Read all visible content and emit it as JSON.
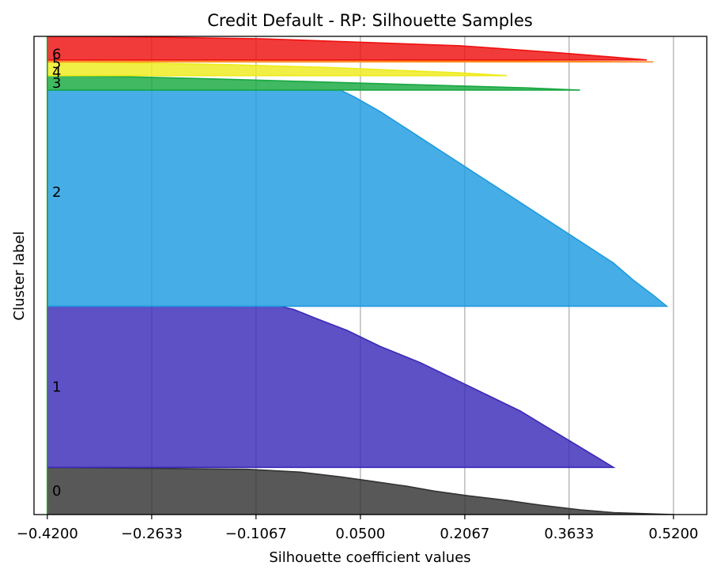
{
  "chart_data": {
    "type": "area",
    "title": "Credit Default - RP: Silhouette Samples",
    "xlabel": "Silhouette coefficient values",
    "ylabel": "Cluster label",
    "xlim": [
      -0.44,
      0.57
    ],
    "xticks": [
      "-0.4200",
      "-0.2633",
      "-0.1067",
      "0.0500",
      "0.2067",
      "0.3633",
      "0.5200"
    ],
    "xtick_values": [
      -0.42,
      -0.2633,
      -0.1067,
      0.05,
      0.2067,
      0.3633,
      0.52
    ],
    "grid": "vertical",
    "average_silhouette_line": -0.42,
    "clusters": [
      {
        "label": "0",
        "color": "#333333",
        "y_range": [
          0,
          72
        ],
        "profile": [
          [
            0,
            0.52
          ],
          [
            0.04,
            0.43
          ],
          [
            0.1,
            0.38
          ],
          [
            0.2,
            0.32
          ],
          [
            0.3,
            0.27
          ],
          [
            0.4,
            0.21
          ],
          [
            0.5,
            0.16
          ],
          [
            0.6,
            0.12
          ],
          [
            0.7,
            0.07
          ],
          [
            0.8,
            0.02
          ],
          [
            0.9,
            -0.04
          ],
          [
            0.96,
            -0.12
          ],
          [
            1,
            -0.42
          ]
        ]
      },
      {
        "label": "1",
        "color": "#3a2ab8",
        "y_range": [
          72,
          318
        ],
        "profile": [
          [
            0,
            0.43
          ],
          [
            0.05,
            0.41
          ],
          [
            0.15,
            0.37
          ],
          [
            0.25,
            0.33
          ],
          [
            0.35,
            0.29
          ],
          [
            0.45,
            0.24
          ],
          [
            0.55,
            0.19
          ],
          [
            0.65,
            0.14
          ],
          [
            0.75,
            0.08
          ],
          [
            0.85,
            0.03
          ],
          [
            0.93,
            -0.02
          ],
          [
            0.98,
            -0.05
          ],
          [
            1,
            -0.07
          ]
        ]
      },
      {
        "label": "2",
        "color": "#1f9be0",
        "y_range": [
          318,
          648
        ],
        "profile": [
          [
            0,
            0.51
          ],
          [
            0.05,
            0.49
          ],
          [
            0.12,
            0.46
          ],
          [
            0.2,
            0.43
          ],
          [
            0.3,
            0.38
          ],
          [
            0.4,
            0.33
          ],
          [
            0.5,
            0.28
          ],
          [
            0.6,
            0.23
          ],
          [
            0.7,
            0.18
          ],
          [
            0.8,
            0.13
          ],
          [
            0.9,
            0.08
          ],
          [
            0.97,
            0.04
          ],
          [
            1,
            0.02
          ]
        ]
      },
      {
        "label": "3",
        "color": "#17a840",
        "y_range": [
          648,
          670
        ],
        "profile": [
          [
            0,
            0.38
          ],
          [
            0.15,
            0.3
          ],
          [
            0.35,
            0.15
          ],
          [
            0.55,
            0.0
          ],
          [
            0.75,
            -0.15
          ],
          [
            0.9,
            -0.28
          ],
          [
            1,
            -0.4
          ]
        ]
      },
      {
        "label": "4",
        "color": "#eeeb1c",
        "y_range": [
          670,
          691
        ],
        "profile": [
          [
            0,
            0.27
          ],
          [
            0.2,
            0.2
          ],
          [
            0.4,
            0.1
          ],
          [
            0.6,
            0.0
          ],
          [
            0.8,
            -0.15
          ],
          [
            1,
            -0.38
          ]
        ]
      },
      {
        "label": "5",
        "color": "#ff8a20",
        "y_range": [
          691,
          694
        ],
        "profile": [
          [
            0,
            0.49
          ],
          [
            0.4,
            0.3
          ],
          [
            0.8,
            0.05
          ],
          [
            1,
            -0.3
          ]
        ]
      },
      {
        "label": "6",
        "color": "#ee1010",
        "y_range": [
          694,
          730
        ],
        "profile": [
          [
            0,
            0.48
          ],
          [
            0.3,
            0.35
          ],
          [
            0.6,
            0.2
          ],
          [
            0.9,
            -0.1
          ],
          [
            1,
            -0.35
          ]
        ]
      }
    ]
  }
}
